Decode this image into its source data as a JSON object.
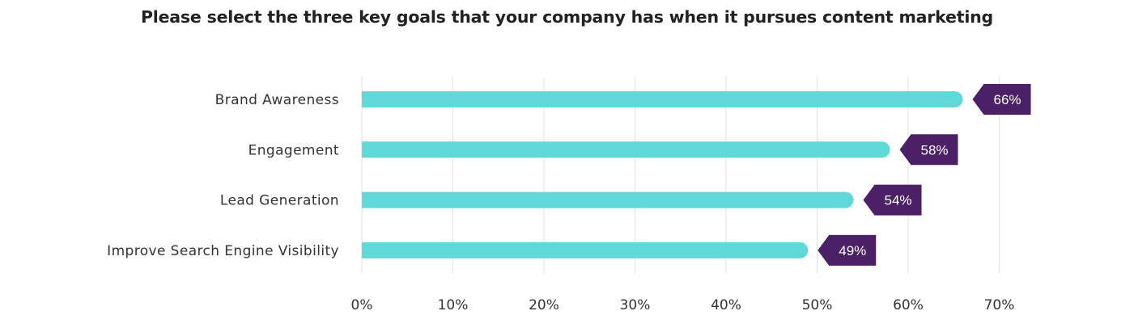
{
  "chart_data": {
    "type": "bar",
    "orientation": "horizontal",
    "title": "Please select the three key goals that your company has when it pursues content marketing",
    "categories": [
      "Brand Awareness",
      "Engagement",
      "Lead Generation",
      "Improve Search Engine Visibility"
    ],
    "values": [
      66,
      58,
      54,
      49
    ],
    "value_labels": [
      "66%",
      "58%",
      "54%",
      "49%"
    ],
    "x_ticks": [
      0,
      10,
      20,
      30,
      40,
      50,
      60,
      70
    ],
    "x_tick_labels": [
      "0%",
      "10%",
      "20%",
      "30%",
      "40%",
      "50%",
      "60%",
      "70%"
    ],
    "xlim": [
      0,
      70
    ],
    "xlabel": "",
    "ylabel": "",
    "grid": "vertical",
    "legend": "none",
    "colors": {
      "bar": "#5fd9d8",
      "label_tag": "#4b2067",
      "grid": "#e2e2e2"
    }
  }
}
